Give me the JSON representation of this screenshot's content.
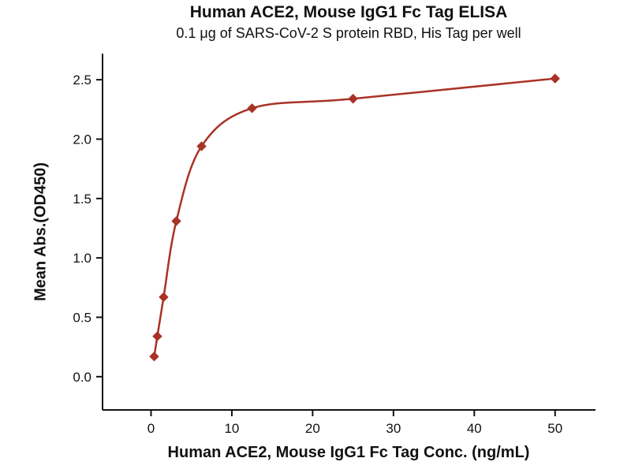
{
  "chart_data": {
    "type": "scatter",
    "title": "Human ACE2, Mouse IgG1 Fc Tag ELISA",
    "subtitle": "0.1 μg of SARS-CoV-2 S protein RBD, His Tag per well",
    "xlabel": "Human ACE2, Mouse IgG1 Fc Tag Conc. (ng/mL)",
    "ylabel": "Mean Abs.(OD450)",
    "series": [
      {
        "name": "Human ACE2, Mouse IgG1 Fc Tag",
        "x": [
          0.39,
          0.78,
          1.56,
          3.13,
          6.25,
          12.5,
          25,
          50
        ],
        "y": [
          0.17,
          0.34,
          0.67,
          1.31,
          1.94,
          2.26,
          2.34,
          2.51
        ]
      }
    ],
    "xlim": [
      -6,
      55
    ],
    "ylim": [
      -0.28,
      2.72
    ],
    "xticks": [
      0,
      10,
      20,
      30,
      40,
      50
    ],
    "yticks": [
      0.0,
      0.5,
      1.0,
      1.5,
      2.0,
      2.5
    ],
    "line_color": "#A93226",
    "marker": "diamond",
    "axis_color": "#111111",
    "grid": false,
    "legend_position": "none",
    "curve_fit": "4PL sigmoidal (smooth through points)"
  }
}
